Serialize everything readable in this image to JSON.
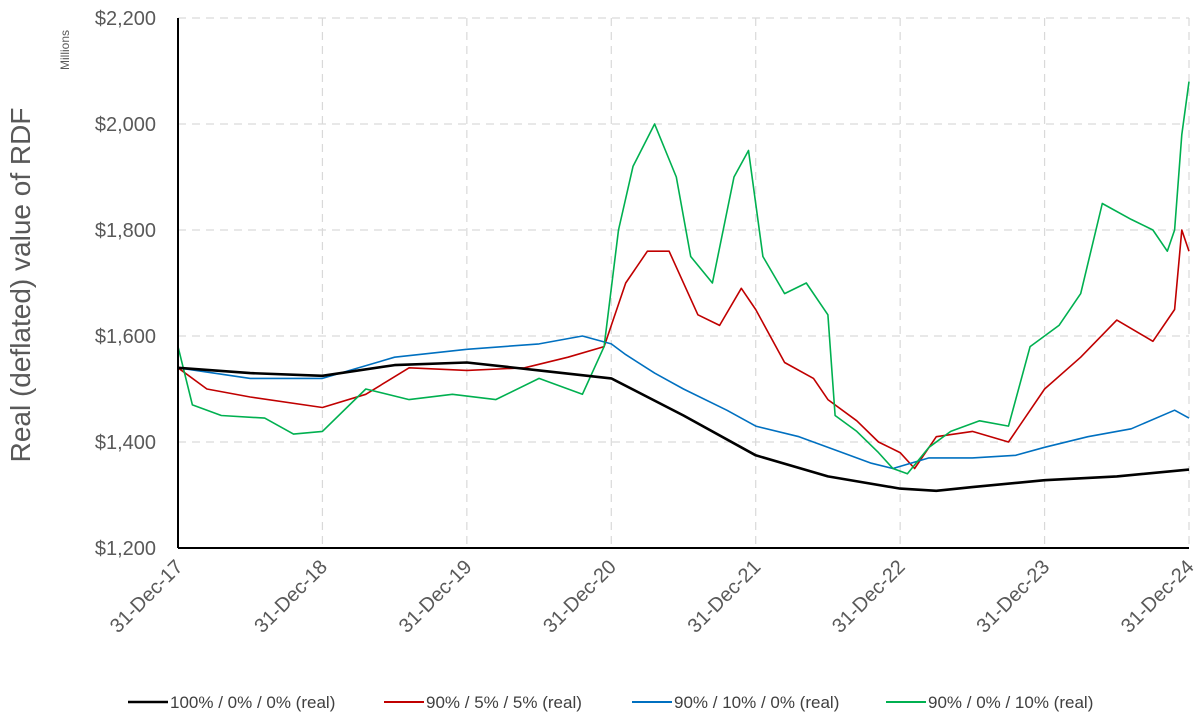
{
  "chart_data": {
    "type": "line",
    "ylabel": "Real (deflated) value of RDF",
    "y_unit_label": "Millions",
    "ylim": [
      1200,
      2200
    ],
    "y_ticks": [
      1200,
      1400,
      1600,
      1800,
      2000,
      2200
    ],
    "y_tick_labels": [
      "$1,200",
      "$1,400",
      "$1,600",
      "$1,800",
      "$2,000",
      "$2,200"
    ],
    "x_tick_labels": [
      "31-Dec-17",
      "31-Dec-18",
      "31-Dec-19",
      "31-Dec-20",
      "31-Dec-21",
      "31-Dec-22",
      "31-Dec-23",
      "31-Dec-24"
    ],
    "xlim": [
      2018.0,
      2025.0
    ],
    "grid": true,
    "legend_position": "bottom",
    "series": [
      {
        "name": "100% / 0% / 0% (real)",
        "color": "#000000",
        "x": [
          2018.0,
          2018.5,
          2019.0,
          2019.5,
          2020.0,
          2020.5,
          2021.0,
          2021.5,
          2022.0,
          2022.5,
          2023.0,
          2023.25,
          2023.5,
          2024.0,
          2024.5,
          2025.0
        ],
        "y": [
          1540,
          1530,
          1525,
          1545,
          1550,
          1535,
          1520,
          1450,
          1375,
          1335,
          1312,
          1308,
          1315,
          1328,
          1335,
          1348
        ]
      },
      {
        "name": "90% / 5% / 5% (real)",
        "color": "#C00000",
        "x": [
          2018.0,
          2018.2,
          2018.5,
          2019.0,
          2019.3,
          2019.6,
          2020.0,
          2020.4,
          2020.7,
          2020.95,
          2021.1,
          2021.25,
          2021.4,
          2021.6,
          2021.75,
          2021.9,
          2022.0,
          2022.2,
          2022.4,
          2022.5,
          2022.7,
          2022.85,
          2023.0,
          2023.1,
          2023.25,
          2023.5,
          2023.75,
          2024.0,
          2024.25,
          2024.5,
          2024.75,
          2024.9,
          2024.95,
          2025.0
        ],
        "y": [
          1540,
          1500,
          1485,
          1465,
          1490,
          1540,
          1535,
          1540,
          1560,
          1580,
          1700,
          1760,
          1760,
          1640,
          1620,
          1690,
          1650,
          1550,
          1520,
          1480,
          1440,
          1400,
          1380,
          1350,
          1410,
          1420,
          1400,
          1500,
          1560,
          1630,
          1590,
          1650,
          1800,
          1760
        ]
      },
      {
        "name": "90% / 10% / 0% (real)",
        "color": "#0070C0",
        "x": [
          2018.0,
          2018.5,
          2019.0,
          2019.5,
          2020.0,
          2020.5,
          2020.8,
          2021.0,
          2021.1,
          2021.3,
          2021.5,
          2021.8,
          2022.0,
          2022.3,
          2022.6,
          2022.8,
          2022.95,
          2023.2,
          2023.5,
          2023.8,
          2024.0,
          2024.3,
          2024.6,
          2024.9,
          2025.0
        ],
        "y": [
          1540,
          1520,
          1520,
          1560,
          1575,
          1585,
          1600,
          1585,
          1565,
          1530,
          1500,
          1460,
          1430,
          1410,
          1380,
          1360,
          1350,
          1370,
          1370,
          1375,
          1390,
          1410,
          1425,
          1460,
          1445
        ]
      },
      {
        "name": "90% / 0% / 10% (real)",
        "color": "#00B050",
        "x": [
          2018.0,
          2018.1,
          2018.3,
          2018.6,
          2018.8,
          2019.0,
          2019.3,
          2019.6,
          2019.9,
          2020.2,
          2020.5,
          2020.8,
          2020.95,
          2021.05,
          2021.15,
          2021.3,
          2021.45,
          2021.55,
          2021.7,
          2021.85,
          2021.95,
          2022.05,
          2022.2,
          2022.35,
          2022.5,
          2022.55,
          2022.7,
          2022.85,
          2022.95,
          2023.05,
          2023.2,
          2023.35,
          2023.55,
          2023.75,
          2023.9,
          2024.1,
          2024.25,
          2024.4,
          2024.6,
          2024.75,
          2024.85,
          2024.9,
          2024.95,
          2025.0
        ],
        "y": [
          1580,
          1470,
          1450,
          1445,
          1415,
          1420,
          1500,
          1480,
          1490,
          1480,
          1520,
          1490,
          1580,
          1800,
          1920,
          2000,
          1900,
          1750,
          1700,
          1900,
          1950,
          1750,
          1680,
          1700,
          1640,
          1450,
          1420,
          1380,
          1350,
          1340,
          1390,
          1420,
          1440,
          1430,
          1580,
          1620,
          1680,
          1850,
          1820,
          1800,
          1760,
          1800,
          1980,
          2080
        ]
      }
    ]
  }
}
